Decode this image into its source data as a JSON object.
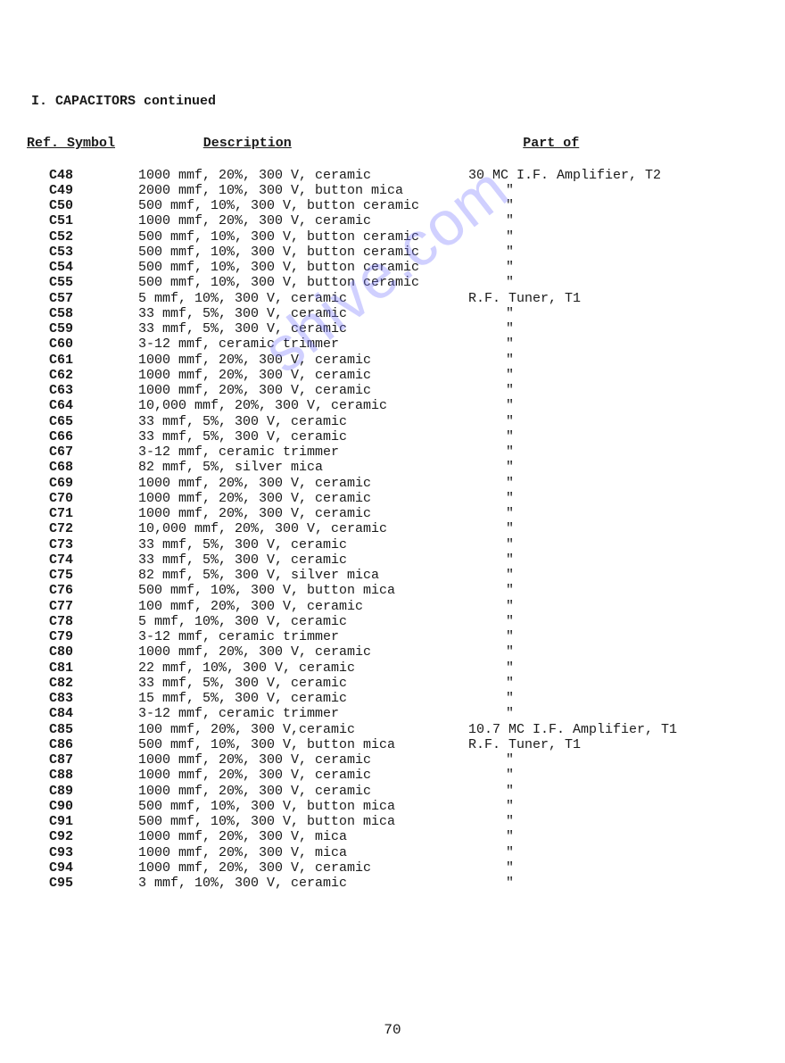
{
  "section_title": "I.  CAPACITORS continued",
  "headers": {
    "ref": "Ref. Symbol",
    "desc": "Description",
    "part": "Part of"
  },
  "ditto": "\"",
  "page_number": "70",
  "watermark": "shive.com",
  "rows": [
    {
      "ref": "C48",
      "desc": "1000 mmf, 20%, 300 V, ceramic",
      "part": "30 MC I.F. Amplifier, T2"
    },
    {
      "ref": "C49",
      "desc": "2000 mmf, 10%, 300 V, button mica",
      "part": "__DITTO__"
    },
    {
      "ref": "C50",
      "desc": "500 mmf, 10%, 300 V, button ceramic",
      "part": "__DITTO__"
    },
    {
      "ref": "C51",
      "desc": "1000 mmf, 20%, 300 V, ceramic",
      "part": "__DITTO__"
    },
    {
      "ref": "C52",
      "desc": "500 mmf, 10%, 300 V, button ceramic",
      "part": "__DITTO__"
    },
    {
      "ref": "C53",
      "desc": "500 mmf, 10%, 300 V, button ceramic",
      "part": "__DITTO__"
    },
    {
      "ref": "C54",
      "desc": "500 mmf, 10%, 300 V, button ceramic",
      "part": "__DITTO__"
    },
    {
      "ref": "C55",
      "desc": "500 mmf, 10%, 300 V, button ceramic",
      "part": "__DITTO__"
    },
    {
      "ref": "C57",
      "desc": "5 mmf, 10%, 300 V, ceramic",
      "part": "R.F. Tuner, T1"
    },
    {
      "ref": "C58",
      "desc": "33 mmf, 5%, 300 V, ceramic",
      "part": "__DITTO__"
    },
    {
      "ref": "C59",
      "desc": "33 mmf, 5%, 300 V, ceramic",
      "part": "__DITTO__"
    },
    {
      "ref": "C60",
      "desc": "3-12 mmf, ceramic trimmer",
      "part": "__DITTO__"
    },
    {
      "ref": "C61",
      "desc": "1000 mmf, 20%, 300 V, ceramic",
      "part": "__DITTO__"
    },
    {
      "ref": "C62",
      "desc": "1000 mmf, 20%, 300 V, ceramic",
      "part": "__DITTO__"
    },
    {
      "ref": "C63",
      "desc": "1000 mmf, 20%, 300 V, ceramic",
      "part": "__DITTO__"
    },
    {
      "ref": "C64",
      "desc": "10,000 mmf, 20%, 300 V, ceramic",
      "part": "__DITTO__"
    },
    {
      "ref": "C65",
      "desc": "33 mmf, 5%, 300 V, ceramic",
      "part": "__DITTO__"
    },
    {
      "ref": "C66",
      "desc": "33 mmf, 5%, 300 V, ceramic",
      "part": "__DITTO__"
    },
    {
      "ref": "C67",
      "desc": "3-12 mmf, ceramic trimmer",
      "part": "__DITTO__"
    },
    {
      "ref": "C68",
      "desc": "82 mmf, 5%, silver mica",
      "part": "__DITTO__"
    },
    {
      "ref": "C69",
      "desc": "1000 mmf, 20%, 300 V, ceramic",
      "part": "__DITTO__"
    },
    {
      "ref": "C70",
      "desc": "1000 mmf, 20%, 300 V, ceramic",
      "part": "__DITTO__"
    },
    {
      "ref": "C71",
      "desc": "1000 mmf, 20%, 300 V, ceramic",
      "part": "__DITTO__"
    },
    {
      "ref": "C72",
      "desc": "10,000 mmf, 20%, 300 V, ceramic",
      "part": "__DITTO__"
    },
    {
      "ref": "C73",
      "desc": "33 mmf, 5%, 300 V, ceramic",
      "part": "__DITTO__"
    },
    {
      "ref": "C74",
      "desc": "33 mmf, 5%, 300 V, ceramic",
      "part": "__DITTO__"
    },
    {
      "ref": "C75",
      "desc": "82 mmf, 5%, 300 V, silver mica",
      "part": "__DITTO__"
    },
    {
      "ref": "C76",
      "desc": "500 mmf, 10%, 300 V, button mica",
      "part": "__DITTO__"
    },
    {
      "ref": "C77",
      "desc": "100 mmf, 20%, 300 V, ceramic",
      "part": "__DITTO__"
    },
    {
      "ref": "C78",
      "desc": "5 mmf, 10%, 300 V, ceramic",
      "part": "__DITTO__"
    },
    {
      "ref": "C79",
      "desc": "3-12 mmf, ceramic trimmer",
      "part": "__DITTO__"
    },
    {
      "ref": "C80",
      "desc": "1000 mmf, 20%, 300 V, ceramic",
      "part": "__DITTO__"
    },
    {
      "ref": "C81",
      "desc": "22 mmf, 10%, 300 V, ceramic",
      "part": "__DITTO__"
    },
    {
      "ref": "C82",
      "desc": "33 mmf, 5%, 300 V, ceramic",
      "part": "__DITTO__"
    },
    {
      "ref": "C83",
      "desc": "15 mmf, 5%, 300 V, ceramic",
      "part": "__DITTO__"
    },
    {
      "ref": "C84",
      "desc": "3-12 mmf, ceramic trimmer",
      "part": "__DITTO__"
    },
    {
      "ref": "C85",
      "desc": "100 mmf, 20%, 300 V,ceramic",
      "part": "10.7 MC I.F. Amplifier, T1"
    },
    {
      "ref": "C86",
      "desc": "500 mmf, 10%, 300 V, button mica",
      "part": "R.F. Tuner, T1"
    },
    {
      "ref": "C87",
      "desc": "1000 mmf, 20%, 300 V, ceramic",
      "part": "__DITTO__"
    },
    {
      "ref": "C88",
      "desc": "1000 mmf, 20%, 300 V, ceramic",
      "part": "__DITTO__"
    },
    {
      "ref": "C89",
      "desc": "1000 mmf, 20%, 300 V, ceramic",
      "part": "__DITTO__"
    },
    {
      "ref": "C90",
      "desc": "500 mmf, 10%, 300 V, button mica",
      "part": "__DITTO__"
    },
    {
      "ref": "C91",
      "desc": "500 mmf, 10%, 300 V, button mica",
      "part": "__DITTO__"
    },
    {
      "ref": "C92",
      "desc": "1000 mmf, 20%, 300 V, mica",
      "part": "__DITTO__"
    },
    {
      "ref": "C93",
      "desc": "1000 mmf, 20%, 300 V, mica",
      "part": "__DITTO__"
    },
    {
      "ref": "C94",
      "desc": "1000 mmf, 20%, 300 V, ceramic",
      "part": "__DITTO__"
    },
    {
      "ref": "C95",
      "desc": "3 mmf, 10%, 300 V, ceramic",
      "part": "__DITTO__"
    }
  ]
}
